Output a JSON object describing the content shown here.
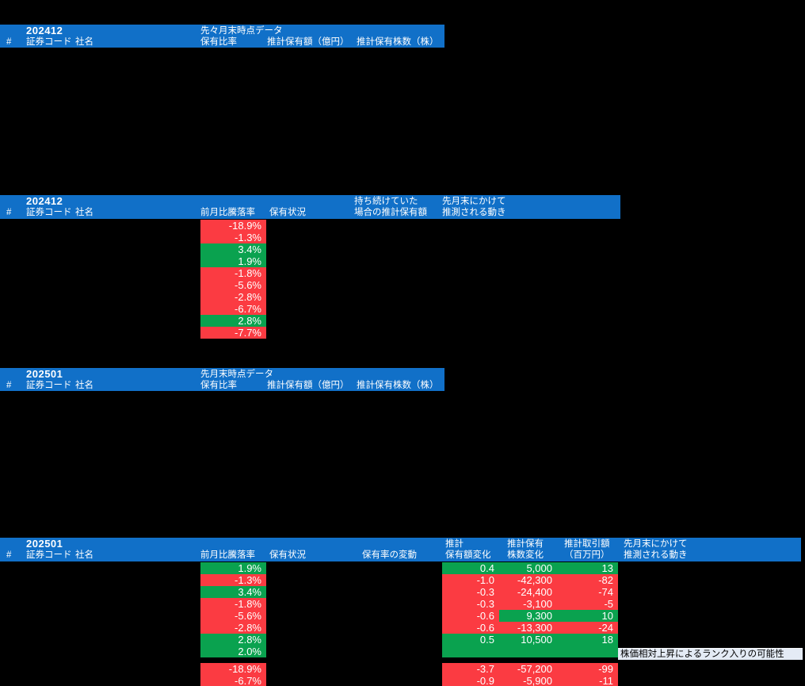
{
  "palette": {
    "header_blue": "#1170c8",
    "up_green": "#0aa24f",
    "down_red": "#fb3b42",
    "note_bg": "#e4ebf5",
    "cell_text": "#ffffff"
  },
  "table1": {
    "title": "202412",
    "section_label": "先々月末時点データ",
    "columns": {
      "num": "#",
      "code": "証券コード",
      "name": "社名",
      "ratio": "保有比率",
      "amount": "推計保有額（億円）",
      "shares": "推計保有株数（株）"
    }
  },
  "table2": {
    "title": "202412",
    "columns": {
      "num": "#",
      "code": "証券コード",
      "name": "社名",
      "pct": "前月比騰落率",
      "status": "保有状況",
      "hold_top": "持ち続けていた",
      "hold_bottom": "場合の推計保有額",
      "move_top": "先月末にかけて",
      "move_bottom": "推測される動き"
    },
    "rows": [
      {
        "pct": "-18.9%",
        "trend": "down"
      },
      {
        "pct": "-1.3%",
        "trend": "down"
      },
      {
        "pct": "3.4%",
        "trend": "up"
      },
      {
        "pct": "1.9%",
        "trend": "up"
      },
      {
        "pct": "-1.8%",
        "trend": "down"
      },
      {
        "pct": "-5.6%",
        "trend": "down"
      },
      {
        "pct": "-2.8%",
        "trend": "down"
      },
      {
        "pct": "-6.7%",
        "trend": "down"
      },
      {
        "pct": "2.8%",
        "trend": "up"
      },
      {
        "pct": "-7.7%",
        "trend": "down"
      }
    ]
  },
  "table3": {
    "title": "202501",
    "section_label": "先月末時点データ",
    "columns": {
      "num": "#",
      "code": "証券コード",
      "name": "社名",
      "ratio": "保有比率",
      "amount": "推計保有額（億円）",
      "shares": "推計保有株数（株）"
    }
  },
  "table4": {
    "title": "202501",
    "columns": {
      "num": "#",
      "code": "証券コード",
      "name": "社名",
      "pct": "前月比騰落率",
      "status": "保有状況",
      "ratio_change": "保有率の変動",
      "amt_top": "推計",
      "amt_bottom": "保有額変化",
      "shares_top": "推計保有",
      "shares_bottom": "株数変化",
      "trade_top": "推計取引額",
      "trade_bottom": "（百万円）",
      "move_top": "先月末にかけて",
      "move_bottom": "推測される動き"
    },
    "rows": [
      {
        "pct": "1.9%",
        "pct_trend": "up",
        "amount": "0.4",
        "amount_trend": "up",
        "shares": "5,000",
        "shares_trend": "up",
        "trade": "13",
        "trade_trend": "up"
      },
      {
        "pct": "-1.3%",
        "pct_trend": "down",
        "amount": "-1.0",
        "amount_trend": "down",
        "shares": "-42,300",
        "shares_trend": "down",
        "trade": "-82",
        "trade_trend": "down"
      },
      {
        "pct": "3.4%",
        "pct_trend": "up",
        "amount": "-0.3",
        "amount_trend": "down",
        "shares": "-24,400",
        "shares_trend": "down",
        "trade": "-74",
        "trade_trend": "down"
      },
      {
        "pct": "-1.8%",
        "pct_trend": "down",
        "amount": "-0.3",
        "amount_trend": "down",
        "shares": "-3,100",
        "shares_trend": "down",
        "trade": "-5",
        "trade_trend": "down"
      },
      {
        "pct": "-5.6%",
        "pct_trend": "down",
        "amount": "-0.6",
        "amount_trend": "down",
        "shares": "9,300",
        "shares_trend": "up",
        "trade": "10",
        "trade_trend": "up"
      },
      {
        "pct": "-2.8%",
        "pct_trend": "down",
        "amount": "-0.6",
        "amount_trend": "down",
        "shares": "-13,300",
        "shares_trend": "down",
        "trade": "-24",
        "trade_trend": "down"
      },
      {
        "pct": "2.8%",
        "pct_trend": "up",
        "amount": "0.5",
        "amount_trend": "up",
        "shares": "10,500",
        "shares_trend": "up",
        "trade": "18",
        "trade_trend": "up"
      },
      {
        "pct": "2.0%",
        "pct_trend": "up",
        "amount": "",
        "amount_trend": "up",
        "shares": "",
        "shares_trend": "up",
        "trade": "",
        "trade_trend": "up"
      },
      {
        "pct": "-18.9%",
        "pct_trend": "down",
        "amount": "-3.7",
        "amount_trend": "down",
        "shares": "-57,200",
        "shares_trend": "down",
        "trade": "-99",
        "trade_trend": "down"
      },
      {
        "pct": "-6.7%",
        "pct_trend": "down",
        "amount": "-0.9",
        "amount_trend": "down",
        "shares": "-5,900",
        "shares_trend": "down",
        "trade": "-11",
        "trade_trend": "down"
      }
    ],
    "note": "株価相対上昇によるランク入りの可能性"
  }
}
